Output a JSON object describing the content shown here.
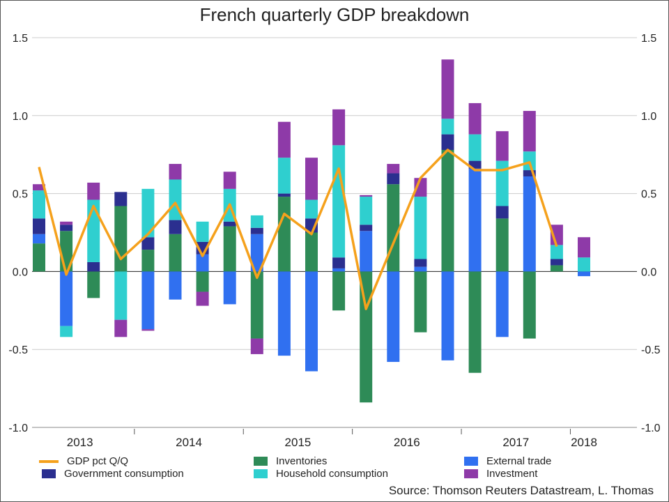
{
  "title": "French quarterly GDP breakdown",
  "source": "Source: Thomson Reuters Datastream, L. Thomas",
  "colors": {
    "gdp": "#f5a11c",
    "government": "#2b2f8f",
    "inventories": "#2e8b57",
    "household": "#2fcfcf",
    "external": "#3070f0",
    "investment": "#8e3aa8",
    "grid": "#cccccc",
    "zero": "#222222"
  },
  "legend": [
    {
      "key": "gdp",
      "label": "GDP pct Q/Q",
      "kind": "line"
    },
    {
      "key": "government",
      "label": "Government consumption",
      "kind": "box"
    },
    {
      "key": "inventories",
      "label": "Inventories",
      "kind": "box"
    },
    {
      "key": "household",
      "label": "Household consumption",
      "kind": "box"
    },
    {
      "key": "external",
      "label": "External trade",
      "kind": "box"
    },
    {
      "key": "investment",
      "label": "Investment",
      "kind": "box"
    }
  ],
  "chart_data": {
    "type": "bar",
    "subtype": "stacked bar with line overlay",
    "title": "French quarterly GDP breakdown",
    "ylim": [
      -1.0,
      1.5
    ],
    "yticks": [
      "1.5",
      "1.0",
      "0.5",
      "0.0",
      "-0.5",
      "-1.0"
    ],
    "ytick_values": [
      1.5,
      1.0,
      0.5,
      0.0,
      -0.5,
      -1.0
    ],
    "grid": true,
    "dual_y_axis_mirrored": true,
    "year_labels": [
      {
        "label": "2013",
        "quarters": 4
      },
      {
        "label": "2014",
        "quarters": 4
      },
      {
        "label": "2015",
        "quarters": 4
      },
      {
        "label": "2016",
        "quarters": 4
      },
      {
        "label": "2017",
        "quarters": 4
      },
      {
        "label": "2018",
        "quarters": 1
      }
    ],
    "categories": [
      "2013 Q1",
      "2013 Q2",
      "2013 Q3",
      "2013 Q4",
      "2014 Q1",
      "2014 Q2",
      "2014 Q3",
      "2014 Q4",
      "2015 Q1",
      "2015 Q2",
      "2015 Q3",
      "2015 Q4",
      "2016 Q1",
      "2016 Q2",
      "2016 Q3",
      "2016 Q4",
      "2017 Q1",
      "2017 Q2",
      "2017 Q3",
      "2017 Q4",
      "2018 Q1"
    ],
    "series": [
      {
        "name": "Inventories",
        "key": "inventories",
        "kind": "bar",
        "values": [
          0.18,
          0.26,
          -0.17,
          0.42,
          0.14,
          0.24,
          -0.13,
          0.29,
          -0.43,
          0.48,
          0.25,
          -0.25,
          -0.84,
          0.56,
          -0.39,
          0.78,
          -0.65,
          0.34,
          -0.43,
          0.04,
          0.0
        ]
      },
      {
        "name": "External trade",
        "key": "external",
        "kind": "bar",
        "values": [
          0.06,
          -0.35,
          0.0,
          0.0,
          -0.37,
          -0.18,
          0.11,
          -0.21,
          0.24,
          -0.54,
          -0.64,
          0.02,
          0.26,
          -0.58,
          0.03,
          -0.57,
          0.66,
          -0.42,
          0.61,
          0.0,
          -0.03
        ]
      },
      {
        "name": "Government consumption",
        "key": "government",
        "kind": "bar",
        "values": [
          0.1,
          0.04,
          0.06,
          0.09,
          0.08,
          0.09,
          0.08,
          0.03,
          0.04,
          0.02,
          0.09,
          0.07,
          0.04,
          0.07,
          0.05,
          0.1,
          0.05,
          0.08,
          0.04,
          0.04,
          0.0
        ]
      },
      {
        "name": "Household consumption",
        "key": "household",
        "kind": "bar",
        "values": [
          0.18,
          -0.07,
          0.4,
          -0.31,
          0.31,
          0.26,
          0.13,
          0.21,
          0.08,
          0.23,
          0.12,
          0.72,
          0.18,
          0.0,
          0.4,
          0.1,
          0.17,
          0.29,
          0.12,
          0.09,
          0.0
        ]
      },
      {
        "name": "Investment",
        "key": "investment",
        "kind": "bar",
        "values": [
          0.04,
          0.02,
          0.11,
          -0.11,
          -0.01,
          0.1,
          -0.09,
          0.11,
          -0.1,
          0.23,
          0.27,
          0.23,
          0.01,
          0.06,
          0.12,
          0.38,
          0.2,
          0.19,
          0.26,
          0.13,
          0.0
        ]
      },
      {
        "name": "GDP pct Q/Q",
        "key": "gdp",
        "kind": "line",
        "values": [
          0.67,
          -0.02,
          0.42,
          0.08,
          0.24,
          0.44,
          0.1,
          0.43,
          -0.04,
          0.37,
          0.24,
          0.66,
          -0.24,
          0.18,
          0.6,
          0.78,
          0.65,
          0.65,
          0.7,
          0.16,
          0.16
        ]
      }
    ],
    "extra_last_bar": {
      "household": 0.09,
      "investment": 0.13
    }
  }
}
